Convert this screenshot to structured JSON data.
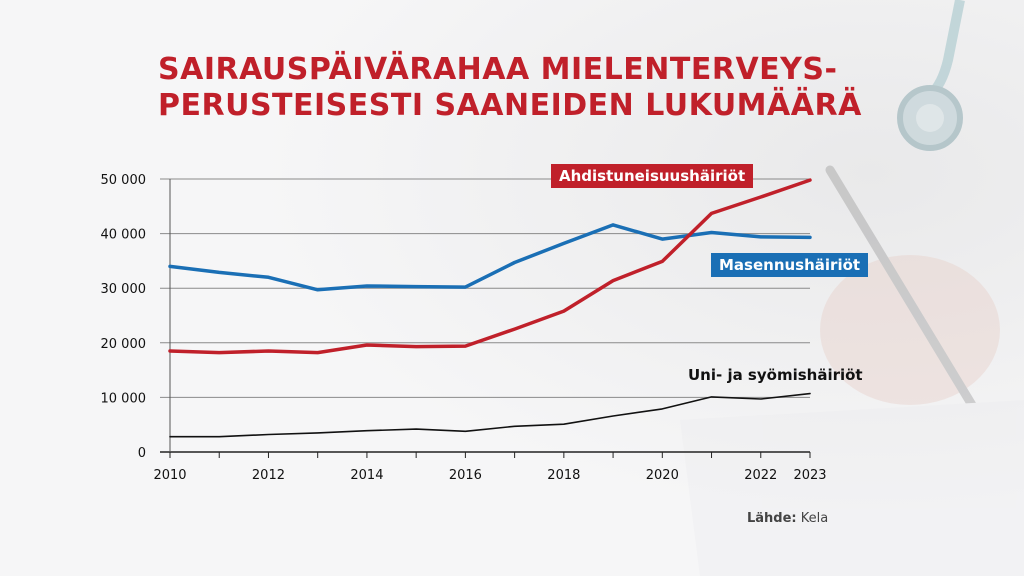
{
  "title_lines": [
    "SAIRAUSPÄIVÄRAHAA MIELENTERVEYS-",
    "PERUSTEISESTI SAANEIDEN LUKUMÄÄRÄ"
  ],
  "source": {
    "label": "Lähde:",
    "value": "Kela"
  },
  "colors": {
    "title": "#c0202a",
    "red": "#c0202a",
    "blue": "#1a6fb5",
    "black": "#111111",
    "grid": "#777777"
  },
  "chart_data": {
    "type": "line",
    "title": "SAIRAUSPÄIVÄRAHAA MIELENTERVEYSPERUSTEISESTI SAANEIDEN LUKUMÄÄRÄ",
    "xlabel": "",
    "ylabel": "",
    "x": [
      2010,
      2011,
      2012,
      2013,
      2014,
      2015,
      2016,
      2017,
      2018,
      2019,
      2020,
      2021,
      2022,
      2023
    ],
    "xlim": [
      2010,
      2023
    ],
    "ylim": [
      0,
      50000
    ],
    "x_tick_labels": [
      "2010",
      "2012",
      "2014",
      "2016",
      "2018",
      "2020",
      "2022",
      "2023"
    ],
    "y_tick_labels": [
      "0",
      "10 000",
      "20 000",
      "30 000",
      "40 000",
      "50 000"
    ],
    "y_ticks": [
      0,
      10000,
      20000,
      30000,
      40000,
      50000
    ],
    "grid": true,
    "legend": "inline labels",
    "series": [
      {
        "name": "Ahdistuneisuushäiriöt",
        "color": "#c0202a",
        "values": [
          18500,
          18200,
          18500,
          18200,
          19600,
          19300,
          19400,
          22500,
          25800,
          31400,
          34900,
          43700,
          46700,
          49800
        ]
      },
      {
        "name": "Masennushäiriöt",
        "color": "#1a6fb5",
        "values": [
          34000,
          32900,
          32000,
          29700,
          30400,
          30300,
          30200,
          34700,
          38200,
          41600,
          39000,
          40200,
          39400,
          39300
        ]
      },
      {
        "name": "Uni- ja syömishäiriöt",
        "color": "#111111",
        "values": [
          2800,
          2800,
          3200,
          3500,
          3900,
          4200,
          3800,
          4700,
          5100,
          6600,
          7900,
          10100,
          9700,
          10700
        ]
      }
    ]
  }
}
